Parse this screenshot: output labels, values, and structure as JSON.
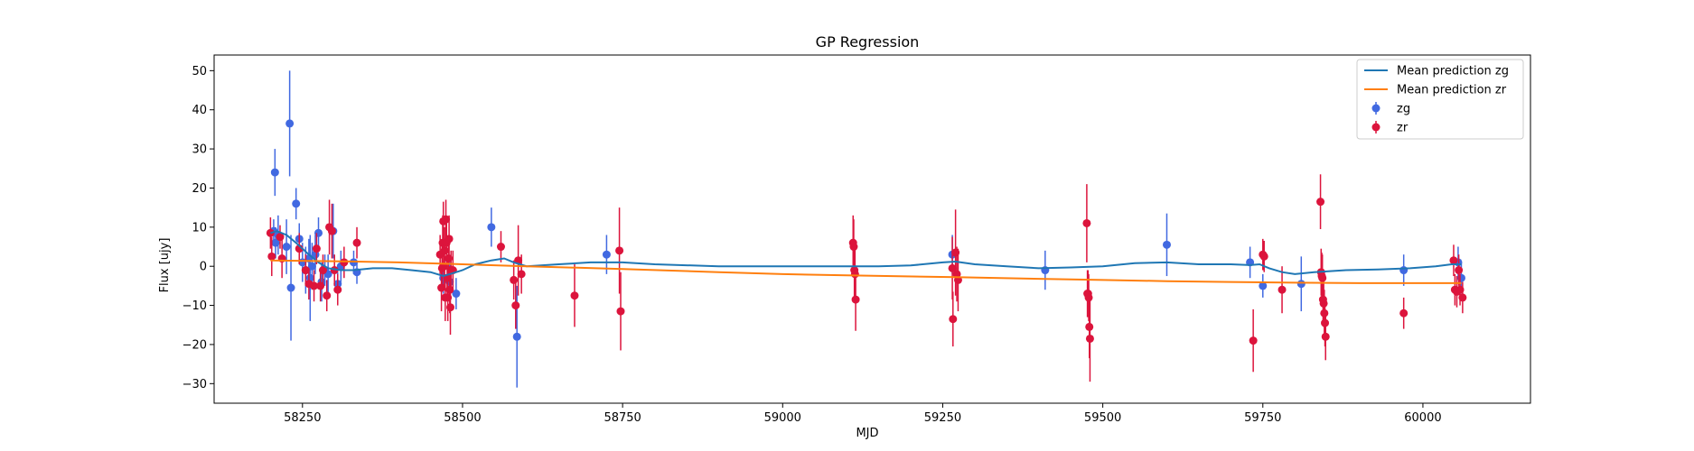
{
  "chart_data": {
    "type": "scatter",
    "title": "GP Regression",
    "xlabel": "MJD",
    "ylabel": "Flux [ujy]",
    "xlim": [
      58112,
      60168
    ],
    "ylim": [
      -35,
      54
    ],
    "xticks": [
      58250,
      58500,
      58750,
      59000,
      59250,
      59500,
      59750,
      60000
    ],
    "yticks": [
      -30,
      -20,
      -10,
      0,
      10,
      20,
      30,
      40,
      50
    ],
    "grid": false,
    "legend_position": "top-right",
    "colors": {
      "zg_points": "#4169e1",
      "zr_points": "#dc143c",
      "zg_line": "#1f77b4",
      "zr_line": "#ff7f0e"
    },
    "series": [
      {
        "name": "Mean prediction zg",
        "kind": "line",
        "color": "#1f77b4",
        "points": [
          [
            58200,
            8.5
          ],
          [
            58210,
            9
          ],
          [
            58225,
            8
          ],
          [
            58240,
            6
          ],
          [
            58260,
            3
          ],
          [
            58275,
            1
          ],
          [
            58290,
            -0.5
          ],
          [
            58310,
            -1
          ],
          [
            58330,
            -1
          ],
          [
            58360,
            -0.5
          ],
          [
            58390,
            -0.5
          ],
          [
            58420,
            -1
          ],
          [
            58450,
            -1.5
          ],
          [
            58470,
            -2.5
          ],
          [
            58480,
            -2
          ],
          [
            58500,
            -1
          ],
          [
            58520,
            0.5
          ],
          [
            58545,
            1.5
          ],
          [
            58565,
            2
          ],
          [
            58580,
            1
          ],
          [
            58600,
            0
          ],
          [
            58650,
            0.5
          ],
          [
            58700,
            1
          ],
          [
            58750,
            1
          ],
          [
            58800,
            0.5
          ],
          [
            58900,
            0
          ],
          [
            59000,
            0
          ],
          [
            59100,
            0
          ],
          [
            59150,
            0
          ],
          [
            59200,
            0.2
          ],
          [
            59250,
            1
          ],
          [
            59270,
            1.2
          ],
          [
            59300,
            0.5
          ],
          [
            59350,
            0
          ],
          [
            59400,
            -0.5
          ],
          [
            59450,
            -0.3
          ],
          [
            59500,
            0
          ],
          [
            59550,
            0.8
          ],
          [
            59600,
            1
          ],
          [
            59650,
            0.5
          ],
          [
            59700,
            0.5
          ],
          [
            59730,
            0.3
          ],
          [
            59745,
            0.5
          ],
          [
            59760,
            -0.5
          ],
          [
            59780,
            -1.5
          ],
          [
            59800,
            -2
          ],
          [
            59830,
            -1.5
          ],
          [
            59880,
            -1
          ],
          [
            59930,
            -0.8
          ],
          [
            59980,
            -0.5
          ],
          [
            60020,
            0
          ],
          [
            60045,
            0.5
          ],
          [
            60060,
            0.5
          ]
        ]
      },
      {
        "name": "Mean prediction zr",
        "kind": "line",
        "color": "#ff7f0e",
        "points": [
          [
            58200,
            1.5
          ],
          [
            58300,
            1.3
          ],
          [
            58400,
            1
          ],
          [
            58500,
            0.5
          ],
          [
            58600,
            0
          ],
          [
            58750,
            -0.7
          ],
          [
            58900,
            -1.5
          ],
          [
            59000,
            -2
          ],
          [
            59100,
            -2.3
          ],
          [
            59270,
            -2.8
          ],
          [
            59400,
            -3.2
          ],
          [
            59500,
            -3.5
          ],
          [
            59600,
            -3.8
          ],
          [
            59700,
            -4
          ],
          [
            59800,
            -4.2
          ],
          [
            59900,
            -4.3
          ],
          [
            60000,
            -4.3
          ],
          [
            60060,
            -4.3
          ]
        ]
      },
      {
        "name": "zg",
        "kind": "errorbar",
        "color": "#4169e1",
        "points": [
          [
            58205,
            9,
            3
          ],
          [
            58207,
            24,
            6
          ],
          [
            58208,
            6,
            4
          ],
          [
            58212,
            8,
            5
          ],
          [
            58225,
            5,
            7
          ],
          [
            58230,
            36.5,
            13.5
          ],
          [
            58232,
            -5.5,
            13.5
          ],
          [
            58240,
            16,
            4
          ],
          [
            58245,
            7,
            4
          ],
          [
            58250,
            1,
            5
          ],
          [
            58255,
            -1,
            6
          ],
          [
            58260,
            2,
            5
          ],
          [
            58262,
            -3,
            11
          ],
          [
            58265,
            0,
            6
          ],
          [
            58270,
            3,
            5
          ],
          [
            58275,
            8.5,
            4
          ],
          [
            58280,
            -4,
            5
          ],
          [
            58285,
            -1,
            4
          ],
          [
            58290,
            -2,
            5
          ],
          [
            58298,
            9,
            7
          ],
          [
            58305,
            -4.5,
            3
          ],
          [
            58310,
            0,
            4
          ],
          [
            58330,
            1,
            3
          ],
          [
            58335,
            -1.5,
            3
          ],
          [
            58470,
            -3,
            4
          ],
          [
            58480,
            -4,
            5
          ],
          [
            58490,
            -7,
            4
          ],
          [
            58545,
            10,
            5
          ],
          [
            58585,
            -18,
            13
          ],
          [
            58725,
            3,
            5
          ],
          [
            59265,
            3,
            5
          ],
          [
            59410,
            -1,
            5
          ],
          [
            59600,
            5.5,
            8
          ],
          [
            59730,
            1,
            4
          ],
          [
            59750,
            -5,
            3
          ],
          [
            59810,
            -4.5,
            7
          ],
          [
            59970,
            -1,
            4
          ],
          [
            60055,
            1,
            4
          ],
          [
            60060,
            -3,
            4
          ]
        ]
      },
      {
        "name": "zr",
        "kind": "errorbar",
        "color": "#dc143c",
        "points": [
          [
            58200,
            8.5,
            4
          ],
          [
            58202,
            2.5,
            5
          ],
          [
            58215,
            7.5,
            3
          ],
          [
            58218,
            2,
            5
          ],
          [
            58245,
            4.5,
            4
          ],
          [
            58255,
            -1,
            4
          ],
          [
            58260,
            -4.5,
            4
          ],
          [
            58268,
            -5,
            4
          ],
          [
            58272,
            4.5,
            4
          ],
          [
            58278,
            -5,
            4
          ],
          [
            58282,
            -1,
            4
          ],
          [
            58288,
            -7.5,
            4
          ],
          [
            58292,
            10,
            7
          ],
          [
            58296,
            9,
            7
          ],
          [
            58300,
            -1,
            4
          ],
          [
            58305,
            -6,
            4
          ],
          [
            58315,
            1,
            4
          ],
          [
            58335,
            6,
            4
          ],
          [
            58465,
            3,
            5
          ],
          [
            58467,
            -5.5,
            6
          ],
          [
            58468,
            -0.5,
            6
          ],
          [
            58469,
            6,
            7
          ],
          [
            58470,
            11.5,
            5
          ],
          [
            58471,
            0,
            6
          ],
          [
            58472,
            4,
            6
          ],
          [
            58473,
            -8,
            6
          ],
          [
            58474,
            12,
            5
          ],
          [
            58475,
            6,
            6
          ],
          [
            58476,
            -3,
            6
          ],
          [
            58477,
            -8,
            6
          ],
          [
            58478,
            2,
            5
          ],
          [
            58479,
            7,
            6
          ],
          [
            58480,
            -6,
            6
          ],
          [
            58481,
            -10.5,
            7
          ],
          [
            58482,
            -1,
            5
          ],
          [
            58485,
            -1,
            5
          ],
          [
            58560,
            5,
            4
          ],
          [
            58580,
            -3.5,
            5
          ],
          [
            58583,
            -10,
            6
          ],
          [
            58587,
            1.5,
            9
          ],
          [
            58592,
            -2,
            5
          ],
          [
            58675,
            -7.5,
            8
          ],
          [
            58745,
            4,
            11
          ],
          [
            58747,
            -11.5,
            10
          ],
          [
            59110,
            6,
            7
          ],
          [
            59111,
            5,
            7
          ],
          [
            59112,
            -1,
            7
          ],
          [
            59113,
            -2,
            7
          ],
          [
            59114,
            -8.5,
            8
          ],
          [
            59265,
            -0.5,
            8
          ],
          [
            59266,
            -13.5,
            7
          ],
          [
            59270,
            3.5,
            11
          ],
          [
            59272,
            -2,
            7
          ],
          [
            59274,
            -3.5,
            8
          ],
          [
            59475,
            11,
            10
          ],
          [
            59476,
            -7,
            6
          ],
          [
            59477,
            -7,
            6
          ],
          [
            59478,
            -8,
            6
          ],
          [
            59479,
            -15.5,
            8
          ],
          [
            59480,
            -18.5,
            11
          ],
          [
            59735,
            -19,
            8
          ],
          [
            59750,
            3,
            4
          ],
          [
            59752,
            2.5,
            4
          ],
          [
            59780,
            -6,
            6
          ],
          [
            59840,
            16.5,
            7
          ],
          [
            59841,
            -1.5,
            6
          ],
          [
            59842,
            -2.5,
            6
          ],
          [
            59843,
            -3,
            6
          ],
          [
            59844,
            -8.5,
            6
          ],
          [
            59845,
            -9.5,
            6
          ],
          [
            59846,
            -12,
            6
          ],
          [
            59847,
            -14.5,
            6
          ],
          [
            59848,
            -18,
            6
          ],
          [
            59970,
            -12,
            4
          ],
          [
            60048,
            1.5,
            4
          ],
          [
            60050,
            -6,
            4
          ],
          [
            60053,
            -6.5,
            4
          ],
          [
            60056,
            -1,
            4
          ],
          [
            60058,
            -6,
            4
          ],
          [
            60062,
            -8,
            4
          ]
        ]
      }
    ]
  }
}
